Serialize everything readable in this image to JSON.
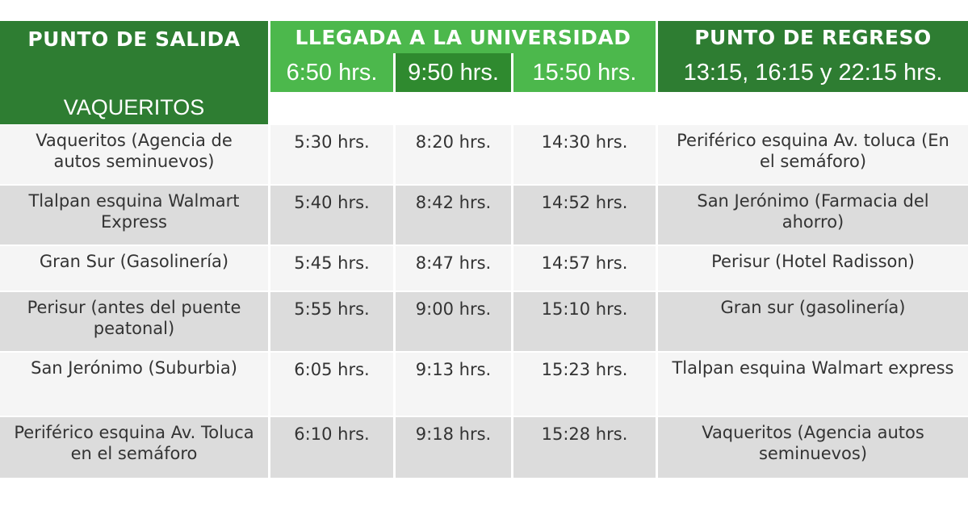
{
  "header": {
    "departure_title": "PUNTO DE SALIDA",
    "departure_sub": "VAQUERITOS",
    "arrival_title": "LLEGADA A LA UNIVERSIDAD",
    "arrival_times": [
      "6:50 hrs.",
      "9:50 hrs.",
      "15:50 hrs."
    ],
    "return_title": "PUNTO DE REGRESO",
    "return_times": "13:15, 16:15 y 22:15 hrs."
  },
  "rows": [
    {
      "stop": "Vaqueritos (Agencia de autos seminuevos)",
      "t1": "5:30 hrs.",
      "t2": "8:20 hrs.",
      "t3": "14:30 hrs.",
      "return": "Periférico esquina Av. toluca (En el semáforo)"
    },
    {
      "stop": "Tlalpan esquina Walmart Express",
      "t1": "5:40 hrs.",
      "t2": "8:42 hrs.",
      "t3": "14:52 hrs.",
      "return": "San Jerónimo (Farmacia del ahorro)"
    },
    {
      "stop": "Gran Sur (Gasolinería)",
      "t1": "5:45 hrs.",
      "t2": "8:47 hrs.",
      "t3": "14:57 hrs.",
      "return": "Perisur (Hotel Radisson)"
    },
    {
      "stop": "Perisur (antes del puente peatonal)",
      "t1": "5:55 hrs.",
      "t2": "9:00 hrs.",
      "t3": "15:10 hrs.",
      "return": "Gran sur (gasolinería)"
    },
    {
      "stop": "San Jerónimo (Suburbia)",
      "t1": "6:05 hrs.",
      "t2": "9:13 hrs.",
      "t3": "15:23 hrs.",
      "return": "Tlalpan esquina Walmart express"
    },
    {
      "stop": "Periférico esquina Av. Toluca en el semáforo",
      "t1": "6:10 hrs.",
      "t2": "9:18 hrs.",
      "t3": "15:28 hrs.",
      "return": "Vaqueritos (Agencia autos seminuevos)"
    }
  ],
  "colors": {
    "header_dark": "#2e7d32",
    "header_light": "#4cb84c",
    "row_light": "#f5f5f5",
    "row_dark": "#dcdcdc"
  }
}
